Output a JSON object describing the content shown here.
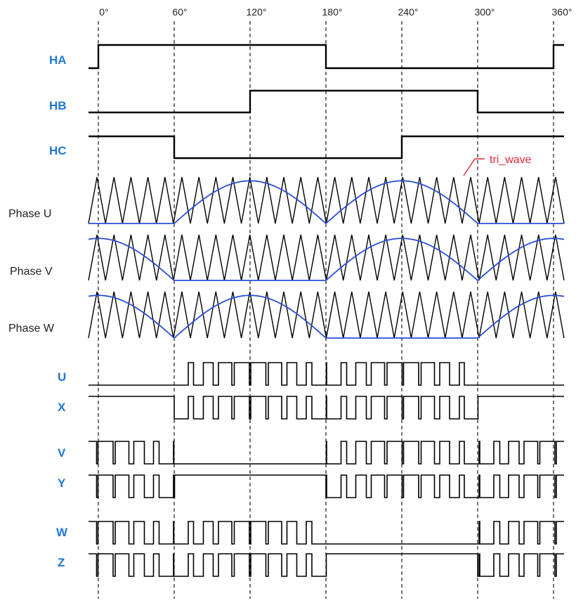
{
  "colors": {
    "label_blue": "#1f77d4",
    "sine_blue": "#2a4fd4",
    "trace": "#000000",
    "annotation_red": "#e0283c",
    "grid": "#000000"
  },
  "angles": [
    "0°",
    "60°",
    "120°",
    "180°",
    "240°",
    "300°",
    "360°"
  ],
  "hall_signals": [
    {
      "label": "HA",
      "initial": 0,
      "edges_deg": [
        0,
        180,
        360
      ]
    },
    {
      "label": "HB",
      "initial": 0,
      "edges_deg": [
        120,
        300
      ]
    },
    {
      "label": "HC",
      "initial": 1,
      "edges_deg": [
        60,
        240
      ]
    }
  ],
  "triangle_wave": {
    "label": "tri_wave",
    "cycles": 28
  },
  "phases": [
    {
      "label": "Phase U",
      "active_deg": [
        60,
        300
      ]
    },
    {
      "label": "Phase V",
      "active_deg": [
        180,
        420
      ]
    },
    {
      "label": "Phase W",
      "active_deg": [
        300,
        540
      ]
    }
  ],
  "switch_signals": [
    {
      "label": "U",
      "phase": "U",
      "flat": "low"
    },
    {
      "label": "X",
      "phase": "U",
      "flat": "high"
    },
    {
      "label": "V",
      "phase": "V",
      "flat": "low"
    },
    {
      "label": "Y",
      "phase": "V",
      "flat": "high"
    },
    {
      "label": "W",
      "phase": "W",
      "flat": "low"
    },
    {
      "label": "Z",
      "phase": "W",
      "flat": "high"
    }
  ]
}
